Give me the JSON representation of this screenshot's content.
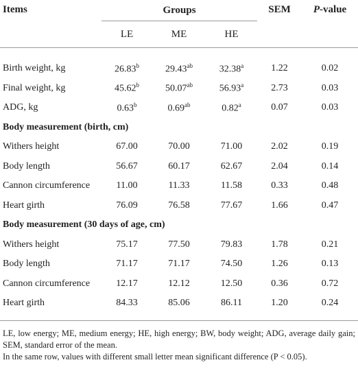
{
  "table": {
    "header": {
      "items": "Items",
      "groups": "Groups",
      "sem": "SEM",
      "p_value": {
        "italic": "P",
        "rest": "-value"
      },
      "subgroups": [
        "LE",
        "ME",
        "HE"
      ]
    },
    "rows": [
      {
        "item": "Birth weight, kg",
        "cells": [
          {
            "text": "26.83",
            "sup": "b"
          },
          {
            "text": "29.43",
            "sup": "ab"
          },
          {
            "text": "32.38",
            "sup": "a"
          },
          "1.22",
          "0.02"
        ]
      },
      {
        "item": "Final weight, kg",
        "cells": [
          {
            "text": "45.62",
            "sup": "b"
          },
          {
            "text": "50.07",
            "sup": "ab"
          },
          {
            "text": "56.93",
            "sup": "a"
          },
          "2.73",
          "0.03"
        ]
      },
      {
        "item": "ADG, kg",
        "cells": [
          {
            "text": "0.63",
            "sup": "b"
          },
          {
            "text": "0.69",
            "sup": "ab"
          },
          {
            "text": "0.82",
            "sup": "a"
          },
          "0.07",
          "0.03"
        ]
      },
      {
        "section": "Body measurement (birth, cm)"
      },
      {
        "item": "Withers height",
        "cells": [
          "67.00",
          "70.00",
          "71.00",
          "2.02",
          "0.19"
        ]
      },
      {
        "item": "Body length",
        "cells": [
          "56.67",
          "60.17",
          "62.67",
          "2.04",
          "0.14"
        ]
      },
      {
        "item": "Cannon circumference",
        "cells": [
          "11.00",
          "11.33",
          "11.58",
          "0.33",
          "0.48"
        ]
      },
      {
        "item": "Heart girth",
        "cells": [
          "76.09",
          "76.58",
          "77.67",
          "1.66",
          "0.47"
        ]
      },
      {
        "section": "Body measurement (30 days of age, cm)"
      },
      {
        "item": "Withers height",
        "cells": [
          "75.17",
          "77.50",
          "79.83",
          "1.78",
          "0.21"
        ]
      },
      {
        "item": "Body length",
        "cells": [
          "71.17",
          "71.17",
          "74.50",
          "1.26",
          "0.13"
        ]
      },
      {
        "item": "Cannon circumference",
        "cells": [
          "12.17",
          "12.12",
          "12.50",
          "0.36",
          "0.72"
        ]
      },
      {
        "item": "Heart girth",
        "cells": [
          "84.33",
          "85.06",
          "86.11",
          "1.20",
          "0.24"
        ]
      }
    ]
  },
  "footnotes": [
    "LE, low energy; ME, medium energy; HE, high energy; BW, body weight; ADG, average daily gain; SEM, standard error of the mean.",
    "In the same row, values with different small letter mean significant difference (P < 0.05)."
  ]
}
